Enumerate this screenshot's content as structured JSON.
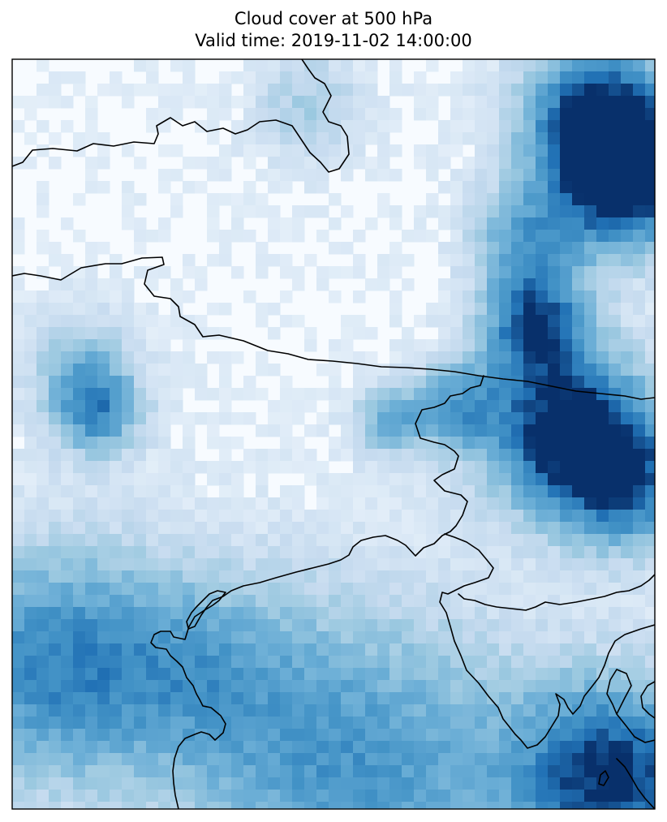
{
  "title": {
    "line1": "Cloud cover at 500 hPa",
    "line2": "Valid time: 2019-11-02 14:00:00"
  },
  "map": {
    "variable": "Cloud cover",
    "pressure_level": "500 hPa",
    "valid_time": "2019-11-02 14:00:00",
    "colormap": "Blues",
    "colors": {
      "low": "#f7fbff",
      "mid": "#9ecae1",
      "high": "#08306b",
      "coastline": "#000000",
      "frame": "#000000"
    },
    "features": [
      "cloud-cover-field",
      "coastlines",
      "country-borders"
    ]
  }
}
